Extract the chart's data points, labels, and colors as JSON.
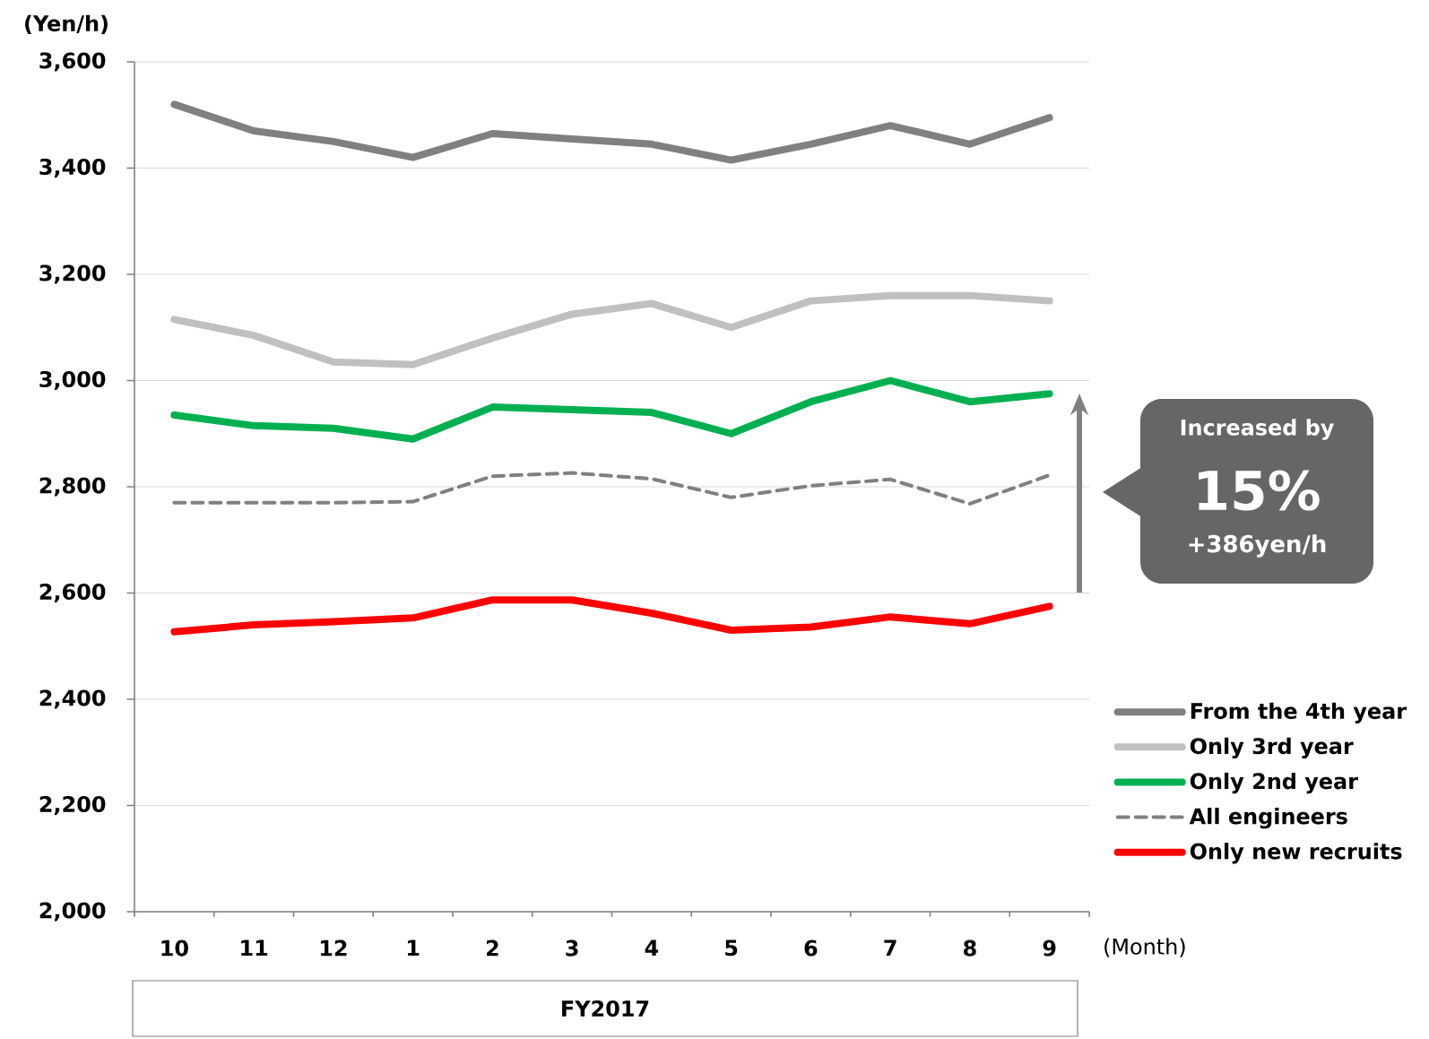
{
  "chart_data": {
    "type": "line",
    "ylabel": "(Yen/h)",
    "xlabel": "(Month)",
    "categories": [
      "10",
      "11",
      "12",
      "1",
      "2",
      "3",
      "4",
      "5",
      "6",
      "7",
      "8",
      "9"
    ],
    "ylim": [
      2000,
      3600
    ],
    "yticks": [
      {
        "value": 2000,
        "label": "2,000"
      },
      {
        "value": 2200,
        "label": "2,200"
      },
      {
        "value": 2400,
        "label": "2,400"
      },
      {
        "value": 2600,
        "label": "2,600"
      },
      {
        "value": 2800,
        "label": "2,800"
      },
      {
        "value": 3000,
        "label": "3,000"
      },
      {
        "value": 3200,
        "label": "3,200"
      },
      {
        "value": 3400,
        "label": "3,400"
      },
      {
        "value": 3600,
        "label": "3,600"
      }
    ],
    "grid": "y",
    "legend": "right",
    "marker": "none",
    "series": [
      {
        "name": "From the 4th year",
        "color": "#808080",
        "line_style": "solid",
        "values": [
          3520,
          3470,
          3450,
          3420,
          3465,
          3455,
          3445,
          3415,
          3445,
          3480,
          3445,
          3495
        ]
      },
      {
        "name": "Only 3rd year",
        "color": "#c0c0c0",
        "line_style": "solid",
        "values": [
          3115,
          3085,
          3035,
          3030,
          3080,
          3125,
          3145,
          3100,
          3150,
          3160,
          3160,
          3150
        ]
      },
      {
        "name": "Only 2nd year",
        "color": "#00b050",
        "line_style": "solid",
        "values": [
          2935,
          2915,
          2910,
          2890,
          2950,
          2945,
          2940,
          2900,
          2960,
          3000,
          2960,
          2975
        ]
      },
      {
        "name": "All engineers",
        "color": "#808080",
        "line_style": "dashed",
        "values": [
          2770,
          2770,
          2770,
          2772,
          2820,
          2826,
          2815,
          2780,
          2802,
          2814,
          2768,
          2822
        ]
      },
      {
        "name": "Only new recruits",
        "color": "#ff0000",
        "line_style": "solid",
        "values": [
          2527,
          2540,
          2546,
          2553,
          2587,
          2587,
          2562,
          2530,
          2536,
          2555,
          2542,
          2575
        ]
      }
    ],
    "annotations": [
      "Increased by",
      "15%",
      "+386yen/h",
      "FY2017"
    ]
  }
}
